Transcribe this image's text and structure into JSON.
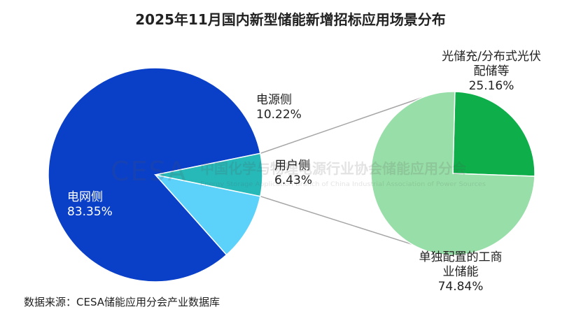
{
  "chart_data": {
    "type": "pie",
    "title": "2025年11月国内新型储能新增招标应用场景分布",
    "main_pie": {
      "slices": [
        {
          "label": "电网侧",
          "value": 83.35,
          "value_text": "83.35%",
          "color": "#0a3fc7"
        },
        {
          "label": "电源侧",
          "value": 10.22,
          "value_text": "10.22%",
          "color": "#5cd2fb"
        },
        {
          "label": "用户侧",
          "value": 6.43,
          "value_text": "6.43%",
          "color": "#27b8b8"
        }
      ]
    },
    "sub_pie": {
      "parent": "用户侧",
      "slices": [
        {
          "label_lines": [
            "光储充/分布式光伏",
            "配储等"
          ],
          "value": 25.16,
          "value_text": "25.16%",
          "color": "#0eae4a"
        },
        {
          "label_lines": [
            "单独配置的工商",
            "业储能"
          ],
          "value": 74.84,
          "value_text": "74.84%",
          "color": "#98dea8"
        }
      ]
    },
    "source": "数据来源：CESA储能应用分会产业数据库",
    "watermark": {
      "logo": "CESA",
      "cn": "中国化学与物理电源行业协会储能应用分会",
      "en": "Energy Storage Application Branch of China Industrial Association of Power Sources"
    }
  }
}
